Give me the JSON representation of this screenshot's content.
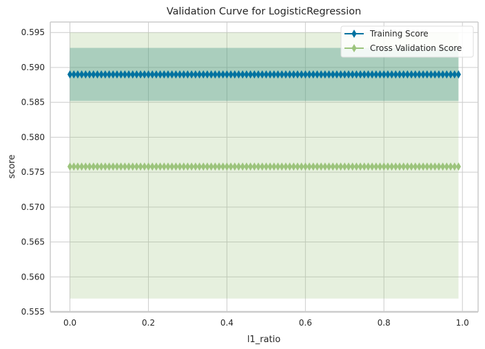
{
  "chart_data": {
    "type": "line",
    "title": "Validation Curve for LogisticRegression",
    "xlabel": "l1_ratio",
    "ylabel": "score",
    "xlim": [
      -0.05,
      1.04
    ],
    "ylim": [
      0.555,
      0.5965
    ],
    "x_ticks": [
      0.0,
      0.2,
      0.4,
      0.6,
      0.8,
      1.0
    ],
    "x_tick_labels": [
      "0.0",
      "0.2",
      "0.4",
      "0.6",
      "0.8",
      "1.0"
    ],
    "y_ticks": [
      0.555,
      0.56,
      0.565,
      0.57,
      0.575,
      0.58,
      0.585,
      0.59,
      0.595
    ],
    "y_tick_labels": [
      "0.555",
      "0.560",
      "0.565",
      "0.570",
      "0.575",
      "0.580",
      "0.585",
      "0.590",
      "0.595"
    ],
    "grid": true,
    "legend_position": "top-right",
    "x_start": 0.0,
    "x_end": 0.99,
    "x_step": 0.01,
    "series": [
      {
        "name": "Training Score",
        "value": 0.589,
        "band": [
          0.5852,
          0.5928
        ],
        "color": "#0072a0",
        "band_color": "#3a8f80",
        "band_opacity": 0.35,
        "marker": "diamond"
      },
      {
        "name": "Cross Validation Score",
        "value": 0.5758,
        "band": [
          0.5569,
          0.595
        ],
        "color": "#9cc47c",
        "band_color": "#9cc47c",
        "band_opacity": 0.25,
        "marker": "diamond"
      }
    ]
  }
}
